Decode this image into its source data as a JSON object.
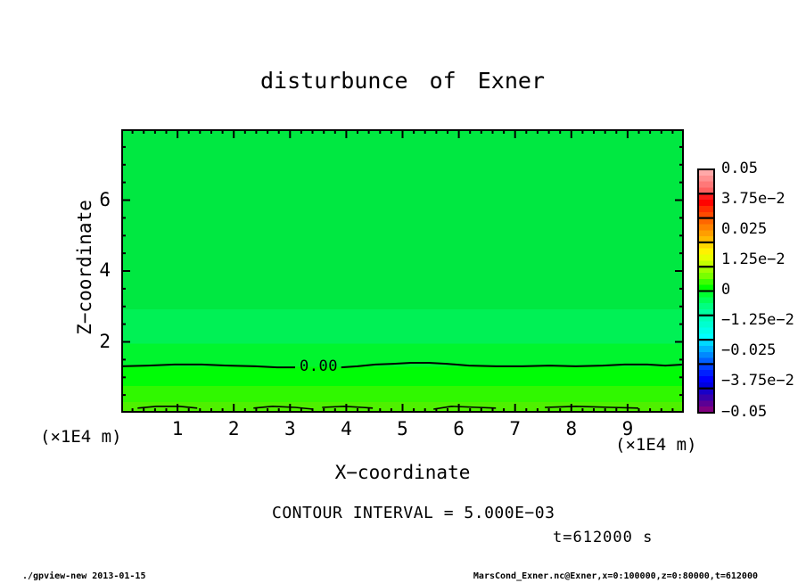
{
  "annotations": {
    "contour_interval_text": "CONTOUR INTERVAL = 5.000E−03",
    "time_text": "t=612000 s"
  },
  "footer": {
    "left": "./gpview-new  2013-01-15",
    "right": "MarsCond_Exner.nc@Exner,x=0:100000,z=0:80000,t=612000"
  },
  "chart_data": {
    "type": "filled_contour",
    "title": "disturbunce of Exner",
    "contour_interval": 0.005,
    "time_s": 612000,
    "axes": {
      "x": {
        "title": "X−coordinate",
        "unit": "(×1E4 m)",
        "range": [
          0,
          10
        ],
        "tick_values": [
          1,
          2,
          3,
          4,
          5,
          6,
          7,
          8,
          9
        ],
        "tick_labels": [
          "1",
          "2",
          "3",
          "4",
          "5",
          "6",
          "7",
          "8",
          "9"
        ],
        "minor_step": 0.2,
        "range_m": [
          0,
          100000
        ]
      },
      "z": {
        "title": "Z−coordinate",
        "unit": "(×1E4 m)",
        "range": [
          0,
          8
        ],
        "tick_values": [
          2,
          4,
          6
        ],
        "tick_labels": [
          "2",
          "4",
          "6"
        ],
        "minor_step": 0.5,
        "range_m": [
          0,
          80000
        ]
      }
    },
    "fill_bands": [
      {
        "z_from": 2.92,
        "z_to": 8.0,
        "approx_value": "-0.005..-0.0025",
        "color": "#00E841"
      },
      {
        "z_from": 1.95,
        "z_to": 2.92,
        "approx_value": "-0.0025..0",
        "color": "#00F155"
      },
      {
        "z_from": 1.3,
        "z_to": 1.95,
        "approx_value": "-0.0025..0",
        "color": "#00F52E"
      },
      {
        "z_from": 0.76,
        "z_to": 1.3,
        "approx_value": "0..0.0025",
        "color": "#00FC06"
      },
      {
        "z_from": 0.3,
        "z_to": 0.76,
        "approx_value": "0.0025..0.005",
        "color": "#30F800"
      },
      {
        "z_from": 0.0,
        "z_to": 0.3,
        "approx_value": "0.005..0.0075",
        "color": "#4FF000"
      }
    ],
    "zero_contour": {
      "label": "0.00",
      "value": 0.0,
      "z_level_approx": 1.3,
      "segments": [
        [
          [
            0,
            1.31
          ],
          [
            0.48,
            1.33
          ],
          [
            0.95,
            1.36
          ],
          [
            1.43,
            1.36
          ],
          [
            1.9,
            1.33
          ],
          [
            2.38,
            1.31
          ],
          [
            2.77,
            1.28
          ],
          [
            3.09,
            1.28
          ]
        ],
        [
          [
            3.91,
            1.28
          ],
          [
            4.2,
            1.31
          ],
          [
            4.52,
            1.36
          ],
          [
            4.83,
            1.38
          ],
          [
            5.15,
            1.41
          ],
          [
            5.47,
            1.41
          ],
          [
            5.79,
            1.38
          ],
          [
            6.18,
            1.33
          ],
          [
            6.66,
            1.31
          ],
          [
            7.13,
            1.31
          ],
          [
            7.61,
            1.33
          ],
          [
            8.08,
            1.31
          ],
          [
            8.56,
            1.33
          ],
          [
            8.95,
            1.36
          ],
          [
            9.35,
            1.36
          ],
          [
            9.67,
            1.33
          ],
          [
            10,
            1.36
          ]
        ]
      ]
    },
    "secondary_contour": {
      "value": 0.005,
      "segments": [
        [
          [
            0.29,
            0.13
          ],
          [
            0.63,
            0.18
          ],
          [
            1.03,
            0.18
          ],
          [
            1.35,
            0.13
          ]
        ],
        [
          [
            2.35,
            0.13
          ],
          [
            2.69,
            0.18
          ],
          [
            3.09,
            0.15
          ],
          [
            3.41,
            0.1
          ]
        ],
        [
          [
            3.57,
            0.15
          ],
          [
            3.96,
            0.18
          ],
          [
            4.28,
            0.15
          ],
          [
            4.47,
            0.13
          ]
        ],
        [
          [
            5.55,
            0.1
          ],
          [
            5.87,
            0.18
          ],
          [
            6.34,
            0.15
          ],
          [
            6.66,
            0.13
          ]
        ],
        [
          [
            7.53,
            0.15
          ],
          [
            8.08,
            0.18
          ],
          [
            8.72,
            0.15
          ],
          [
            9.19,
            0.13
          ]
        ]
      ]
    },
    "colorbar": {
      "min": -0.05,
      "max": 0.05,
      "labels": [
        "0.05",
        "3.75e−2",
        "0.025",
        "1.25e−2",
        "0",
        "−1.25e−2",
        "−0.025",
        "−3.75e−2",
        "−0.05"
      ],
      "strips": [
        "#FFA8A8",
        "#FF9090",
        "#FF7878",
        "#FF6060",
        "#FF1A1A",
        "#FF0400",
        "#FF2E00",
        "#FF4A00",
        "#FF6600",
        "#FF8200",
        "#FF9E00",
        "#FFBA00",
        "#FFD600",
        "#FFF200",
        "#E8FF00",
        "#C4FF00",
        "#9EFF00",
        "#78FF00",
        "#3CFF00",
        "#00FF00",
        "#00FF30",
        "#00FF58",
        "#00FF80",
        "#00FFA0",
        "#00FFB8",
        "#00FFD0",
        "#00FFE8",
        "#00FFFF",
        "#00D8FF",
        "#00B0FF",
        "#0088FF",
        "#0060FF",
        "#0040FF",
        "#0020FF",
        "#0000FF",
        "#0000E0",
        "#1800C8",
        "#3800AC",
        "#5C0094",
        "#800080"
      ]
    }
  }
}
